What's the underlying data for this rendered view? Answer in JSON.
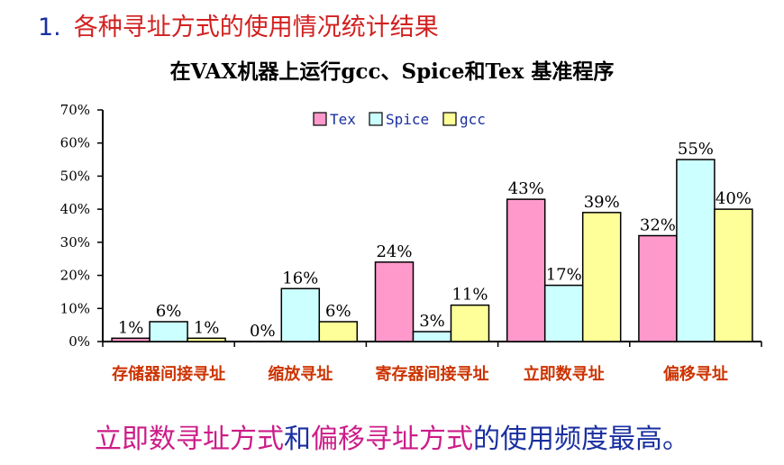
{
  "heading": {
    "number": "1.",
    "text": "各种寻址方式的使用情况统计结果"
  },
  "chart_data": {
    "type": "bar",
    "title": "在VAX机器上运行gcc、Spice和Tex 基准程序",
    "categories": [
      "存储器间接寻址",
      "缩放寻址",
      "寄存器间接寻址",
      "立即数寻址",
      "偏移寻址"
    ],
    "series": [
      {
        "name": "Tex",
        "color": "#ff99cc",
        "values": [
          1,
          0,
          24,
          43,
          32
        ]
      },
      {
        "name": "Spice",
        "color": "#ccffff",
        "values": [
          6,
          16,
          3,
          17,
          55
        ]
      },
      {
        "name": "gcc",
        "color": "#ffff99",
        "values": [
          1,
          6,
          11,
          39,
          40
        ]
      }
    ],
    "value_labels": [
      [
        "1%",
        "0%",
        "24%",
        "43%",
        "32%"
      ],
      [
        "6%",
        "16%",
        "3%",
        "17%",
        "55%"
      ],
      [
        "1%",
        "6%",
        "11%",
        "39%",
        "40%"
      ]
    ],
    "ylim": [
      0,
      70
    ],
    "yticks": [
      "0%",
      "10%",
      "20%",
      "30%",
      "40%",
      "50%",
      "60%",
      "70%"
    ],
    "legend_position": "top-center",
    "grid": false,
    "category_label_color": "#cc3300"
  },
  "conclusion": {
    "part1": "立即数寻址方式",
    "part2": "和",
    "part3": "偏移寻址方式",
    "part4": "的使用频度最高。"
  }
}
